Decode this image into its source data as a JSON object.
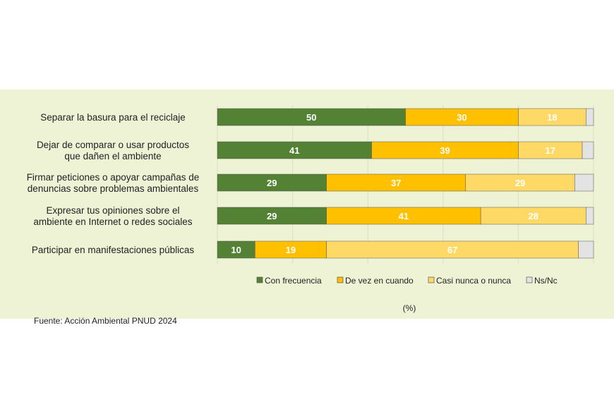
{
  "chart_data": {
    "type": "bar",
    "orientation": "horizontal",
    "stacked": true,
    "categories": [
      "Separar la basura para el reciclaje",
      "Dejar de comparar o usar productos\nque dañen el ambiente",
      "Firmar peticiones o apoyar campañas de\ndenuncias sobre problemas ambientales",
      "Expresar tus opiniones sobre el\nambiente en Internet o redes sociales",
      "Participar en manifestaciones públicas"
    ],
    "series": [
      {
        "name": "Con frecuencia",
        "color": "#548235",
        "values": [
          50,
          41,
          29,
          29,
          10
        ]
      },
      {
        "name": "De vez en cuando",
        "color": "#ffc000",
        "values": [
          30,
          39,
          37,
          41,
          19
        ]
      },
      {
        "name": "Casi nunca o nunca",
        "color": "#ffd966",
        "values": [
          18,
          17,
          29,
          28,
          67
        ]
      },
      {
        "name": "Ns/Nc",
        "color": "#e3e3e3",
        "values": [
          2,
          3,
          5,
          2,
          4
        ]
      }
    ],
    "xlabel": "(%)",
    "xlim": [
      0,
      100
    ],
    "grid": true,
    "legend": "bottom",
    "footer": "Fuente: Acción Ambiental PNUD 2024"
  }
}
